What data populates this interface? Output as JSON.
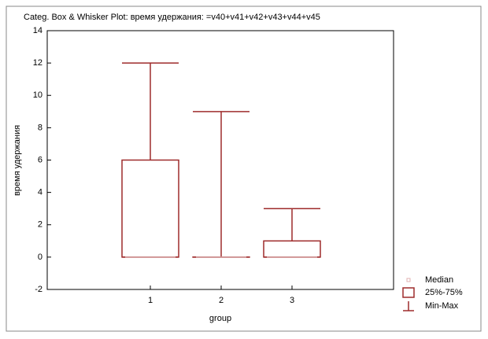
{
  "chart_data": {
    "type": "box",
    "title": "Categ. Box & Whisker Plot: время удержания: =v40+v41+v42+v43+v44+v45",
    "xlabel": "group",
    "ylabel": "время удержания",
    "categories": [
      "1",
      "2",
      "3"
    ],
    "min": [
      0,
      0,
      0
    ],
    "q1": [
      0,
      0,
      0
    ],
    "median": [
      0,
      0,
      0
    ],
    "q3": [
      6,
      0,
      1
    ],
    "max": [
      12,
      9,
      3
    ],
    "color": "#9e2b2b",
    "legend": [
      "Median",
      "25%-75%",
      "Min-Max"
    ],
    "ylim": [
      -2,
      14
    ],
    "yticks": [
      -2,
      0,
      2,
      4,
      6,
      8,
      10,
      12,
      14
    ]
  }
}
